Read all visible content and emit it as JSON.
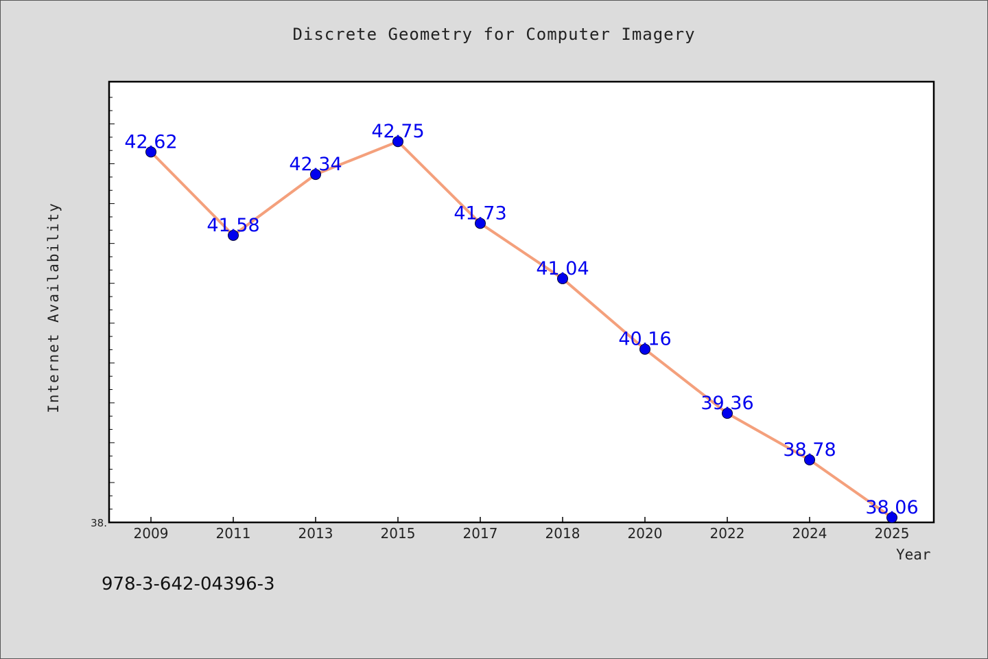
{
  "chart_data": {
    "type": "line",
    "title": "Discrete Geometry for Computer Imagery",
    "xlabel": "Year",
    "ylabel": "Internet Availability",
    "categories": [
      "2009",
      "2011",
      "2013",
      "2015",
      "2017",
      "2018",
      "2020",
      "2022",
      "2024",
      "2025"
    ],
    "values": [
      42.62,
      41.58,
      42.34,
      42.75,
      41.73,
      41.04,
      40.16,
      39.36,
      38.78,
      38.06
    ],
    "data_labels": [
      "42.62",
      "41.58",
      "42.34",
      "42.75",
      "41.73",
      "41.04",
      "40.16",
      "39.36",
      "38.78",
      "38.06"
    ],
    "ylim": [
      38,
      43.5
    ],
    "y_tick_label": "38.",
    "grid": false,
    "line_color": "#f4a07c",
    "marker_color": "#0000ee",
    "label_color": "#0000ee"
  },
  "footer": {
    "isbn": "978-3-642-04396-3"
  }
}
